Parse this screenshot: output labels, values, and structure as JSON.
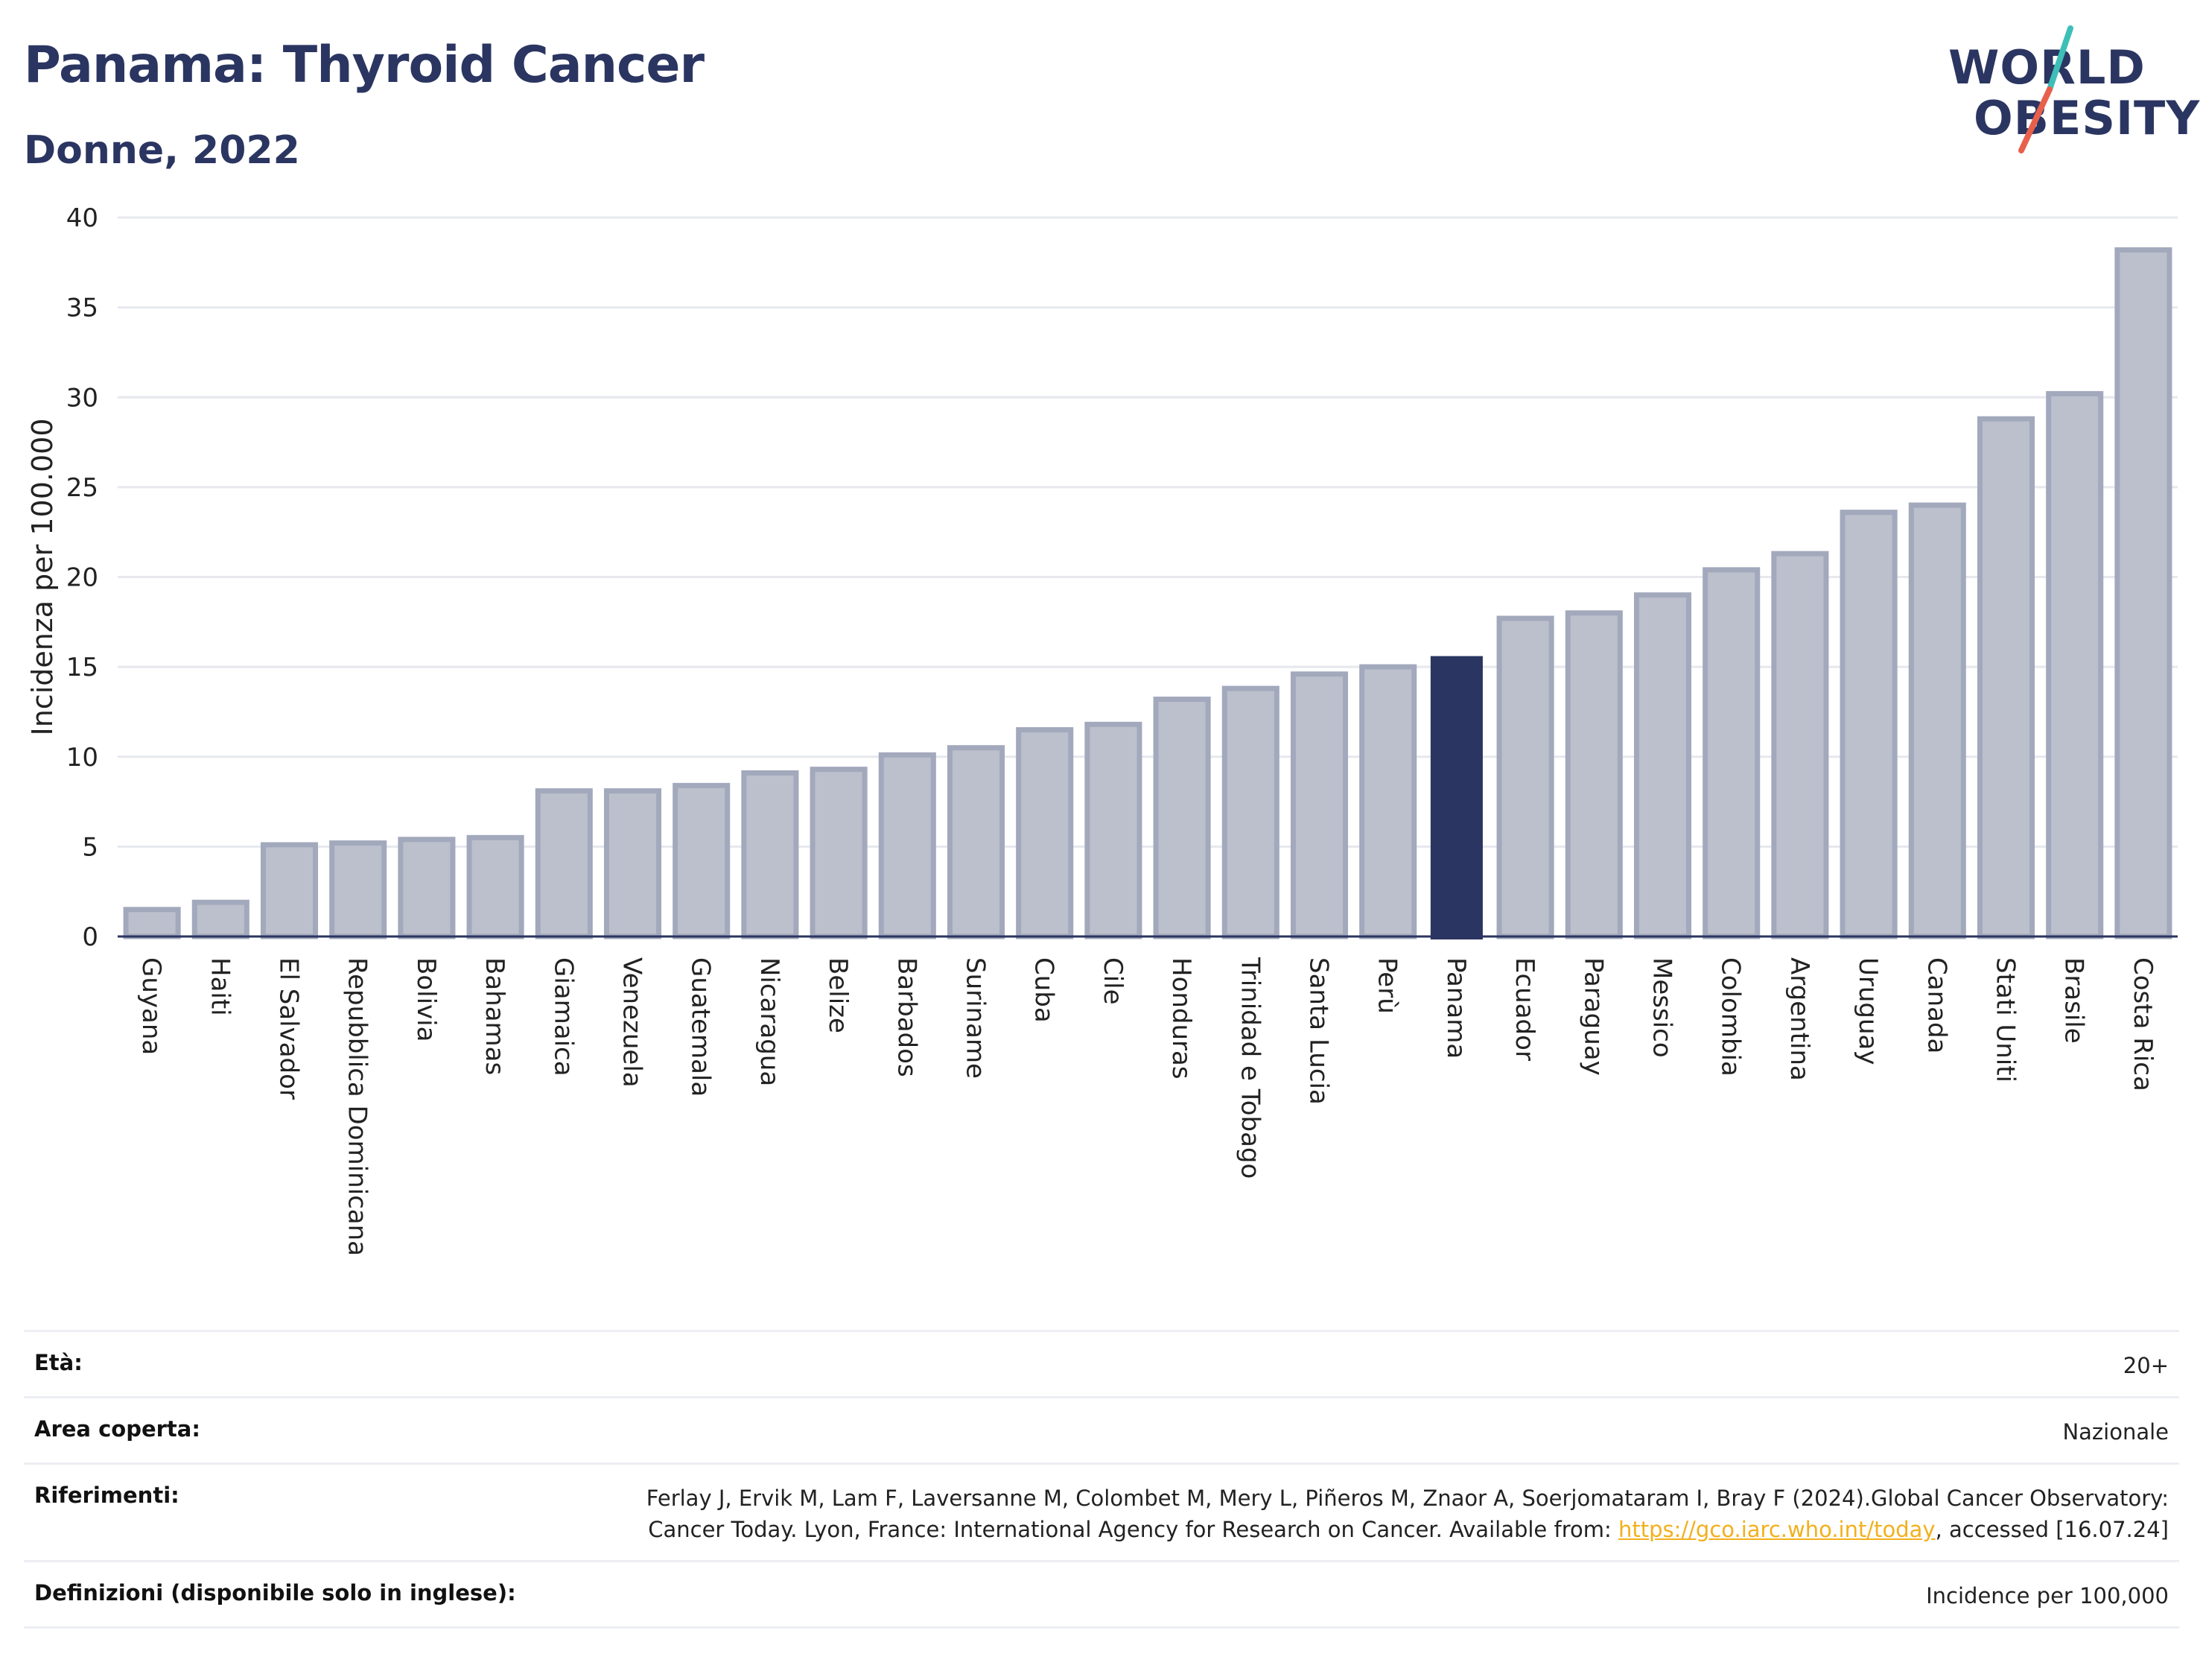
{
  "header": {
    "title": "Panama: Thyroid Cancer",
    "subtitle": "Donne, 2022"
  },
  "logo": {
    "line1": "WORLD",
    "line2": "OBESITY",
    "slash_colors": [
      "#3dbfb8",
      "#e8604c"
    ]
  },
  "colors": {
    "bar_default": "#bcc0cc",
    "bar_default_border": "#a3a9bc",
    "bar_highlight": "#2b3561",
    "grid": "#e6e8ee",
    "axis": "#2b3561"
  },
  "chart_data": {
    "type": "bar",
    "title": "Panama: Thyroid Cancer",
    "subtitle": "Donne, 2022",
    "ylabel": "Incidenza per 100.000",
    "xlabel": "",
    "ylim": [
      0,
      40
    ],
    "yticks": [
      0,
      5,
      10,
      15,
      20,
      25,
      30,
      35,
      40
    ],
    "grid": true,
    "highlight": "Panama",
    "categories": [
      "Guyana",
      "Haiti",
      "El Salvador",
      "Repubblica Dominicana",
      "Bolivia",
      "Bahamas",
      "Giamaica",
      "Venezuela",
      "Guatemala",
      "Nicaragua",
      "Belize",
      "Barbados",
      "Suriname",
      "Cuba",
      "Cile",
      "Honduras",
      "Trinidad e Tobago",
      "Santa Lucia",
      "Perù",
      "Panama",
      "Ecuador",
      "Paraguay",
      "Messico",
      "Colombia",
      "Argentina",
      "Uruguay",
      "Canada",
      "Stati Uniti",
      "Brasile",
      "Costa Rica"
    ],
    "values": [
      1.5,
      1.9,
      5.1,
      5.2,
      5.4,
      5.5,
      8.1,
      8.1,
      8.4,
      9.1,
      9.3,
      10.1,
      10.5,
      11.5,
      11.8,
      13.2,
      13.8,
      14.6,
      15.0,
      15.6,
      17.7,
      18.0,
      19.0,
      20.4,
      21.3,
      23.6,
      24.0,
      28.8,
      30.2,
      38.2
    ]
  },
  "info": {
    "rows": [
      {
        "label": "Età:",
        "value": "20+"
      },
      {
        "label": "Area coperta:",
        "value": "Nazionale"
      },
      {
        "label": "Riferimenti:",
        "value_pre": "Ferlay J, Ervik M, Lam F, Laversanne M, Colombet M, Mery L, Piñeros M, Znaor A, Soerjomataram I, Bray F (2024).Global Cancer Observatory: Cancer Today. Lyon, France: International Agency for Research on Cancer. Available from: ",
        "link": "https://gco.iarc.who.int/today",
        "value_post": ", accessed [16.07.24]"
      },
      {
        "label": "Definizioni (disponibile solo in inglese):",
        "value": "Incidence per 100,000"
      }
    ]
  }
}
